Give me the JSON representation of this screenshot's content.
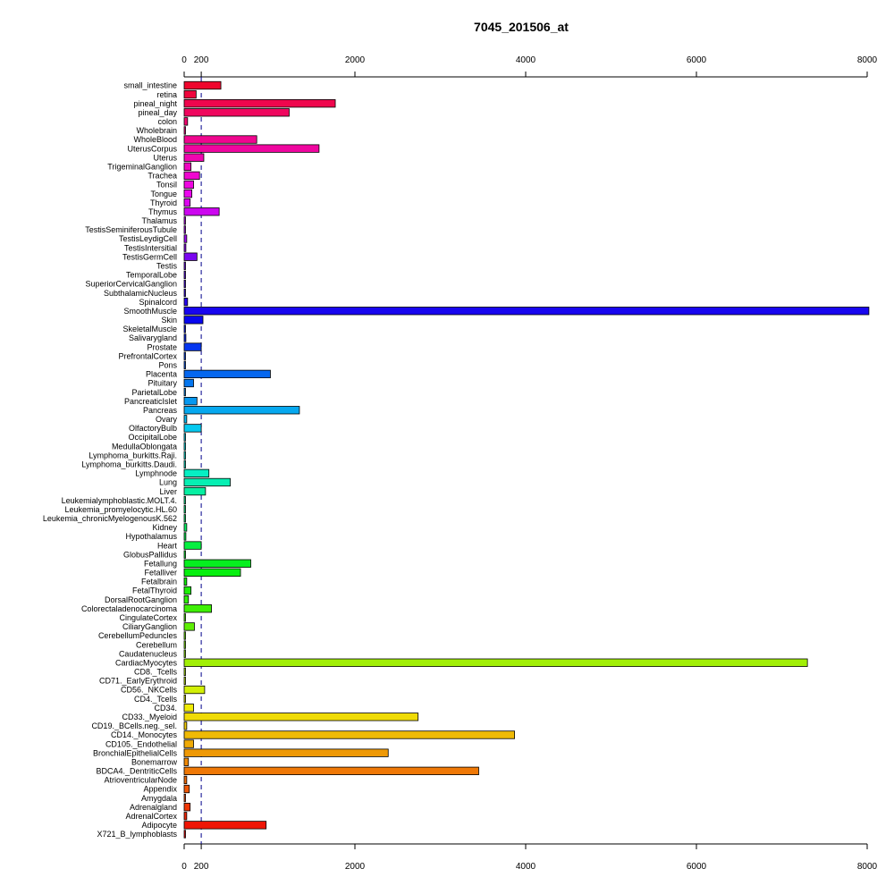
{
  "chart_data": {
    "type": "bar",
    "orientation": "horizontal",
    "title": "7045_201506_at",
    "xlim": [
      0,
      8000
    ],
    "xticks": [
      0,
      200,
      2000,
      4000,
      6000,
      8000
    ],
    "reference_line": 200,
    "categories": [
      "small_intestine",
      "retina",
      "pineal_night",
      "pineal_day",
      "colon",
      "Wholebrain",
      "WholeBlood",
      "UterusCorpus",
      "Uterus",
      "TrigeminalGanglion",
      "Trachea",
      "Tonsil",
      "Tongue",
      "Thyroid",
      "Thymus",
      "Thalamus",
      "TestisSeminiferousTubule",
      "TestisLeydigCell",
      "TestisIntersitial",
      "TestisGermCell",
      "Testis",
      "TemporalLobe",
      "SuperiorCervicalGanglion",
      "SubthalamicNucleus",
      "Spinalcord",
      "SmoothMuscle",
      "Skin",
      "SkeletalMuscle",
      "Salivarygland",
      "Prostate",
      "PrefrontalCortex",
      "Pons",
      "Placenta",
      "Pituitary",
      "ParietalLobe",
      "PancreaticIslet",
      "Pancreas",
      "Ovary",
      "OlfactoryBulb",
      "OccipitalLobe",
      "MedullaOblongata",
      "Lymphoma_burkitts.Raji.",
      "Lymphoma_burkitts.Daudi.",
      "Lymphnode",
      "Lung",
      "Liver",
      "Leukemialymphoblastic.MOLT.4.",
      "Leukemia_promyelocytic.HL.60",
      "Leukemia_chronicMyelogenousK.562",
      "Kidney",
      "Hypothalamus",
      "Heart",
      "GlobusPallidus",
      "Fetallung",
      "Fetalliver",
      "Fetalbrain",
      "FetalThyroid",
      "DorsalRootGanglion",
      "Colorectaladenocarcinoma",
      "CingulateCortex",
      "CiliaryGanglion",
      "CerebellumPeduncles",
      "Cerebellum",
      "Caudatenucleus",
      "CardiacMyocytes",
      "CD8._Tcells",
      "CD71._EarlyErythroid",
      "CD56._NKCells",
      "CD4._Tcells",
      "CD34.",
      "CD33._Myeloid",
      "CD19._BCells.neg._sel.",
      "CD14._Monocytes",
      "CD105._Endothelial",
      "BronchialEpithelialCells",
      "Bonemarrow",
      "BDCA4._DentriticCells",
      "AtrioventricularNode",
      "Appendix",
      "Amygdala",
      "Adrenalgland",
      "AdrenalCortex",
      "Adipocyte",
      "X721_B_lymphoblasts"
    ],
    "values": [
      430,
      140,
      1770,
      1230,
      40,
      10,
      850,
      1580,
      230,
      80,
      180,
      110,
      90,
      70,
      410,
      10,
      10,
      30,
      20,
      150,
      10,
      10,
      10,
      10,
      40,
      8020,
      220,
      10,
      20,
      200,
      10,
      10,
      1010,
      110,
      10,
      150,
      1350,
      30,
      200,
      10,
      10,
      10,
      10,
      290,
      540,
      250,
      10,
      10,
      10,
      30,
      20,
      200,
      10,
      780,
      660,
      30,
      80,
      50,
      320,
      10,
      120,
      10,
      10,
      10,
      7300,
      10,
      10,
      240,
      10,
      110,
      2740,
      30,
      3870,
      110,
      2390,
      50,
      3450,
      30,
      60,
      10,
      70,
      30,
      960,
      10
    ]
  }
}
